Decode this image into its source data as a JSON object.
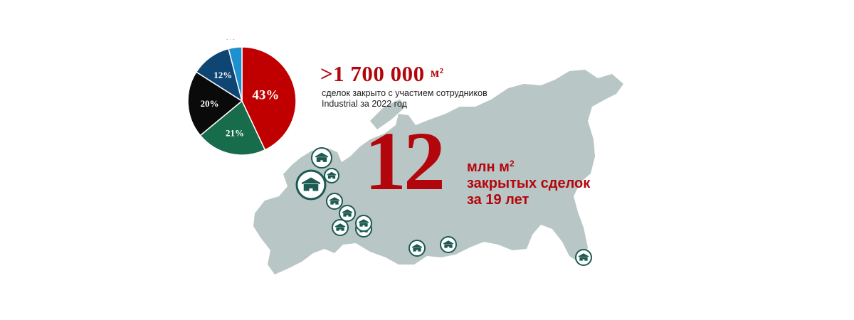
{
  "chart_data": {
    "type": "pie",
    "slices": [
      {
        "label": "43%",
        "value": 43,
        "color": "#c00000"
      },
      {
        "label": "21%",
        "value": 21,
        "color": "#176c4c"
      },
      {
        "label": "20%",
        "value": 20,
        "color": "#0a0a0a"
      },
      {
        "label": "12%",
        "value": 12,
        "color": "#0f4573"
      },
      {
        "label": "4%",
        "value": 4,
        "color": "#1f90cf"
      }
    ]
  },
  "headline": {
    "value": ">1 700 000",
    "unit": "м²"
  },
  "caption": {
    "line1": "сделок закрыто с участием  сотрудников",
    "line2": "Industrial  за 2022 год"
  },
  "total": {
    "number": "12",
    "unit_line": "млн м",
    "unit_sup": "2",
    "line2": "закрытых сделок",
    "line3": "за 19 лет"
  },
  "colors": {
    "accent": "#b3060c",
    "map": "#b9c6c6",
    "marker": "#1c5a52"
  },
  "map": {
    "marker_icon": "warehouse-icon"
  }
}
